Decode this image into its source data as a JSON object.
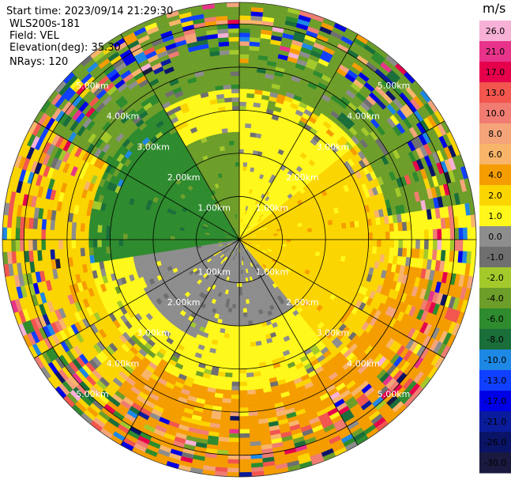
{
  "header": {
    "start_time": "Start time: 2023/09/14 21:29:30",
    "instrument": "WLS200s-181",
    "field": "Field: VEL",
    "elevation": "Elevation(deg): 35.30",
    "nrays": "NRays: 120"
  },
  "colorbar": {
    "title": "m/s",
    "tick_labels": [
      "26.0",
      "21.0",
      "17.0",
      "13.0",
      "10.0",
      "8.0",
      "6.0",
      "4.0",
      "2.0",
      "1.0",
      "0.0",
      "-1.0",
      "-2.0",
      "-4.0",
      "-6.0",
      "-8.0",
      "-10.0",
      "-13.0",
      "-17.0",
      "-21.0",
      "-26.0",
      "-30.0"
    ],
    "colors": [
      "#f7b0d6",
      "#e8338a",
      "#e6004c",
      "#f2564e",
      "#f07c72",
      "#f5a47a",
      "#f8b56a",
      "#f59d00",
      "#fbd500",
      "#fff81a",
      "#8d8d8d",
      "#6f6f6f",
      "#a3c92b",
      "#6e9e2a",
      "#2e8b2e",
      "#1a6e3a",
      "#1e88e5",
      "#1040ff",
      "#0000e6",
      "#0a1c9c",
      "#0a1466",
      "#1a1a40"
    ]
  },
  "chart_data": {
    "type": "ppi-radar",
    "field": "VEL",
    "units": "m/s",
    "elevation_deg": 35.3,
    "nrays": 120,
    "range_rings_km": [
      1.0,
      2.0,
      3.0,
      4.0,
      5.0
    ],
    "ring_labels": [
      "1.00km",
      "2.00km",
      "3.00km",
      "4.00km",
      "5.00km"
    ],
    "max_range_km": 5.5,
    "vmin": -30,
    "vmax": 30,
    "colormap_bounds": [
      -30,
      -26,
      -21,
      -17,
      -13,
      -10,
      -8,
      -6,
      -4,
      -2,
      -1,
      0,
      1,
      2,
      4,
      6,
      8,
      10,
      13,
      17,
      21,
      26,
      30
    ],
    "spoke_count": 12,
    "sectors": [
      {
        "az_start": 0,
        "az_end": 50,
        "r_start": 0.0,
        "r_end": 2.0,
        "value": 1.5
      },
      {
        "az_start": 50,
        "az_end": 140,
        "r_start": 0.0,
        "r_end": 3.5,
        "value": 3.0
      },
      {
        "az_start": 140,
        "az_end": 200,
        "r_start": 0.0,
        "r_end": 2.0,
        "value": 0.5
      },
      {
        "az_start": 200,
        "az_end": 260,
        "r_start": 0.0,
        "r_end": 2.5,
        "value": 0.2
      },
      {
        "az_start": 260,
        "az_end": 330,
        "r_start": 0.0,
        "r_end": 3.5,
        "value": -5.0
      },
      {
        "az_start": 330,
        "az_end": 360,
        "r_start": 0.0,
        "r_end": 2.5,
        "value": -3.0
      },
      {
        "az_start": 100,
        "az_end": 220,
        "r_start": 3.5,
        "r_end": 5.5,
        "value": 5.0
      },
      {
        "az_start": 220,
        "az_end": 300,
        "r_start": 3.5,
        "r_end": 5.5,
        "value": 2.5
      },
      {
        "az_start": 300,
        "az_end": 440,
        "r_start": 3.5,
        "r_end": 5.5,
        "value": -3.0
      }
    ]
  }
}
